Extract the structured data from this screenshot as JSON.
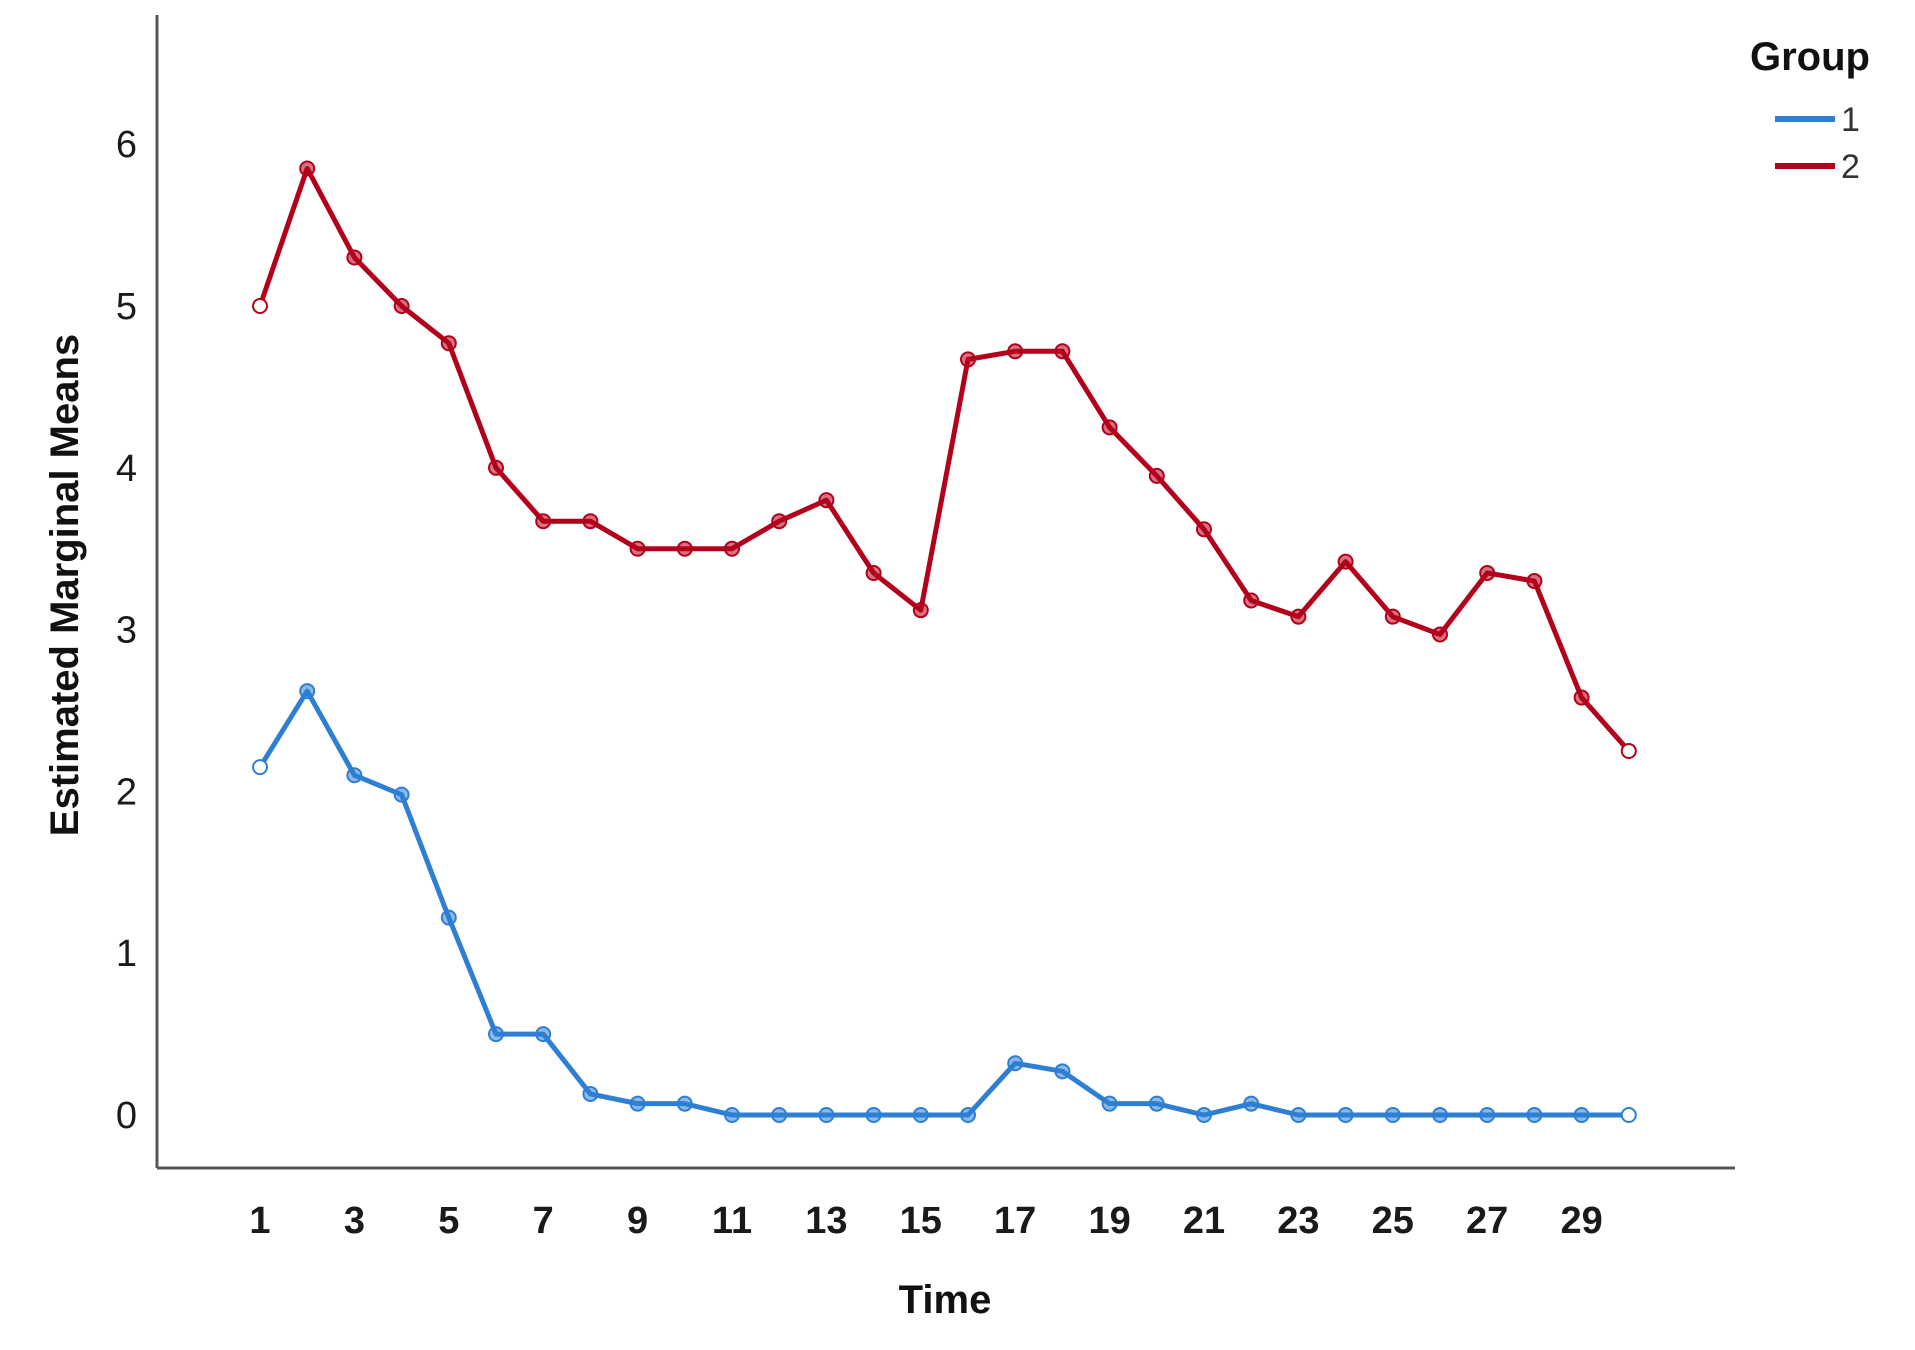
{
  "chart_data": {
    "type": "line",
    "xlabel": "Time",
    "ylabel": "Estimated Marginal Means",
    "x": [
      1,
      2,
      3,
      4,
      5,
      6,
      7,
      8,
      9,
      10,
      11,
      12,
      13,
      14,
      15,
      16,
      17,
      18,
      19,
      20,
      21,
      22,
      23,
      24,
      25,
      26,
      27,
      28,
      29,
      30
    ],
    "x_tick_labels": [
      "1",
      "3",
      "5",
      "7",
      "9",
      "11",
      "13",
      "15",
      "17",
      "19",
      "21",
      "23",
      "25",
      "27",
      "29"
    ],
    "y_tick_labels": [
      "0",
      "1",
      "2",
      "3",
      "4",
      "5",
      "6"
    ],
    "xlim": [
      0,
      33
    ],
    "ylim": [
      -0.35,
      6.5
    ],
    "grid": false,
    "legend": {
      "title": "Group",
      "position": "top-right"
    },
    "series": [
      {
        "name": "1",
        "color": "#2e7fd3",
        "values": [
          2.15,
          2.62,
          2.1,
          1.98,
          1.22,
          0.5,
          0.5,
          0.13,
          0.07,
          0.07,
          0.0,
          0.0,
          0.0,
          0.0,
          0.0,
          0.0,
          0.32,
          0.27,
          0.07,
          0.07,
          0.0,
          0.07,
          0.0,
          0.0,
          0.0,
          0.0,
          0.0,
          0.0,
          0.0,
          0.0
        ]
      },
      {
        "name": "2",
        "color": "#b3001b",
        "values": [
          5.0,
          5.85,
          5.3,
          5.0,
          4.77,
          4.0,
          3.67,
          3.67,
          3.5,
          3.5,
          3.5,
          3.67,
          3.8,
          3.35,
          3.12,
          4.67,
          4.72,
          4.72,
          4.25,
          3.95,
          3.62,
          3.18,
          3.08,
          3.42,
          3.08,
          2.97,
          3.35,
          3.3,
          2.58,
          2.25
        ]
      }
    ]
  }
}
